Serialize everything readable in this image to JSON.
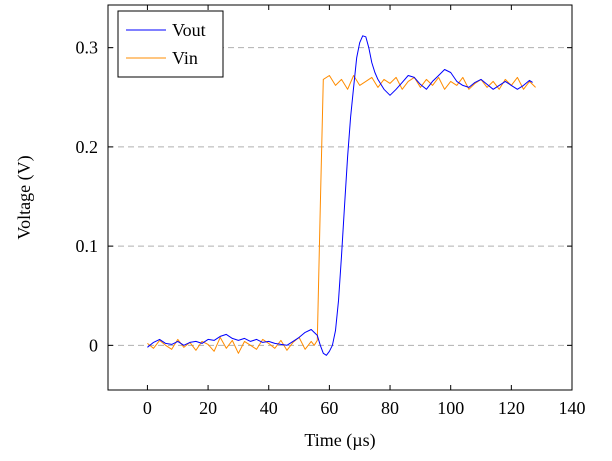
{
  "chart_data": {
    "type": "line",
    "xlabel": "Time (µs)",
    "ylabel": "Voltage (V)",
    "xlim": [
      -13,
      140
    ],
    "ylim": [
      -0.045,
      0.343
    ],
    "xticks": [
      0,
      20,
      40,
      60,
      80,
      100,
      120,
      140
    ],
    "yticks": [
      0,
      0.1,
      0.2,
      0.3
    ],
    "xtick_labels": [
      "0",
      "20",
      "40",
      "60",
      "80",
      "100",
      "120",
      "140"
    ],
    "ytick_labels": [
      "0",
      "0.1",
      "0.2",
      "0.3"
    ],
    "grid": "horizontal dashed at major y ticks",
    "legend_position": "top-left",
    "series": [
      {
        "name": "Vout",
        "color": "#0000ff",
        "x": [
          0,
          2,
          4,
          6,
          8,
          10,
          12,
          14,
          16,
          18,
          20,
          22,
          24,
          26,
          28,
          30,
          32,
          34,
          36,
          38,
          40,
          42,
          44,
          46,
          48,
          50,
          52,
          54,
          56,
          57,
          58,
          59,
          60,
          61,
          62,
          63,
          64,
          65,
          66,
          67,
          68,
          69,
          70,
          71,
          72,
          73,
          74,
          75,
          76,
          78,
          80,
          82,
          84,
          86,
          88,
          90,
          92,
          94,
          96,
          98,
          100,
          102,
          104,
          106,
          108,
          110,
          112,
          114,
          116,
          118,
          120,
          122,
          124,
          126,
          127
        ],
        "y": [
          -0.002,
          0.003,
          0.006,
          0.002,
          0.001,
          0.004,
          0.0,
          0.003,
          0.004,
          0.002,
          0.006,
          0.005,
          0.009,
          0.011,
          0.007,
          0.005,
          0.007,
          0.004,
          0.006,
          0.003,
          0.004,
          0.002,
          0.001,
          0.0,
          0.004,
          0.008,
          0.013,
          0.016,
          0.01,
          0.0,
          -0.008,
          -0.01,
          -0.006,
          0.0,
          0.015,
          0.045,
          0.09,
          0.14,
          0.19,
          0.23,
          0.26,
          0.29,
          0.305,
          0.312,
          0.311,
          0.3,
          0.285,
          0.275,
          0.268,
          0.258,
          0.252,
          0.258,
          0.265,
          0.272,
          0.27,
          0.263,
          0.258,
          0.266,
          0.272,
          0.278,
          0.275,
          0.266,
          0.262,
          0.26,
          0.265,
          0.268,
          0.263,
          0.258,
          0.262,
          0.266,
          0.262,
          0.258,
          0.262,
          0.267,
          0.265
        ]
      },
      {
        "name": "Vin",
        "color": "#ff8c00",
        "x": [
          0,
          2,
          4,
          6,
          8,
          10,
          12,
          14,
          16,
          18,
          20,
          22,
          24,
          26,
          28,
          30,
          32,
          34,
          36,
          38,
          40,
          42,
          44,
          46,
          48,
          50,
          52,
          54,
          55,
          56,
          57,
          58,
          60,
          62,
          64,
          66,
          68,
          70,
          72,
          74,
          76,
          78,
          80,
          82,
          84,
          86,
          88,
          90,
          92,
          94,
          96,
          98,
          100,
          102,
          104,
          106,
          108,
          110,
          112,
          114,
          116,
          118,
          120,
          122,
          124,
          126,
          128
        ],
        "y": [
          0.002,
          -0.003,
          0.005,
          0.0,
          -0.004,
          0.006,
          -0.002,
          0.003,
          -0.005,
          0.004,
          0.001,
          -0.006,
          0.008,
          -0.003,
          0.005,
          -0.008,
          0.004,
          0.0,
          -0.004,
          0.006,
          0.002,
          -0.003,
          0.005,
          -0.005,
          0.003,
          0.008,
          -0.004,
          0.004,
          0.0,
          0.005,
          0.14,
          0.268,
          0.272,
          0.262,
          0.268,
          0.258,
          0.272,
          0.262,
          0.266,
          0.27,
          0.26,
          0.268,
          0.264,
          0.27,
          0.258,
          0.266,
          0.27,
          0.26,
          0.268,
          0.262,
          0.27,
          0.258,
          0.266,
          0.262,
          0.27,
          0.258,
          0.264,
          0.268,
          0.26,
          0.266,
          0.258,
          0.268,
          0.262,
          0.27,
          0.258,
          0.266,
          0.26
        ]
      }
    ]
  }
}
